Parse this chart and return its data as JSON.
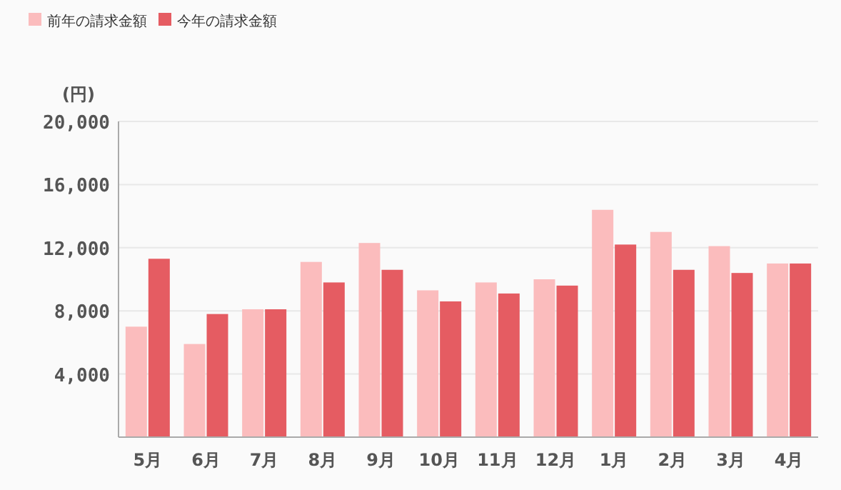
{
  "chart_data": {
    "type": "bar",
    "ylabel": "(円)",
    "categories": [
      "5月",
      "6月",
      "7月",
      "8月",
      "9月",
      "10月",
      "11月",
      "12月",
      "1月",
      "2月",
      "3月",
      "4月"
    ],
    "series": [
      {
        "name": "前年の請求金額",
        "color": "#fbbcbd",
        "values": [
          7000,
          5900,
          8100,
          11100,
          12300,
          9300,
          9800,
          10000,
          14400,
          13000,
          12100,
          11000
        ]
      },
      {
        "name": "今年の請求金額",
        "color": "#e55c62",
        "values": [
          11300,
          7800,
          8100,
          9800,
          10600,
          8600,
          9100,
          9600,
          12200,
          10600,
          10400,
          11000
        ]
      }
    ],
    "ylim": [
      0,
      20000
    ],
    "yticks": [
      {
        "value": 4000,
        "label": "4,000"
      },
      {
        "value": 8000,
        "label": "8,000"
      },
      {
        "value": 12000,
        "label": "12,000"
      },
      {
        "value": 16000,
        "label": "16,000"
      },
      {
        "value": 20000,
        "label": "20,000"
      }
    ],
    "grid": "y",
    "legend": "top left"
  }
}
